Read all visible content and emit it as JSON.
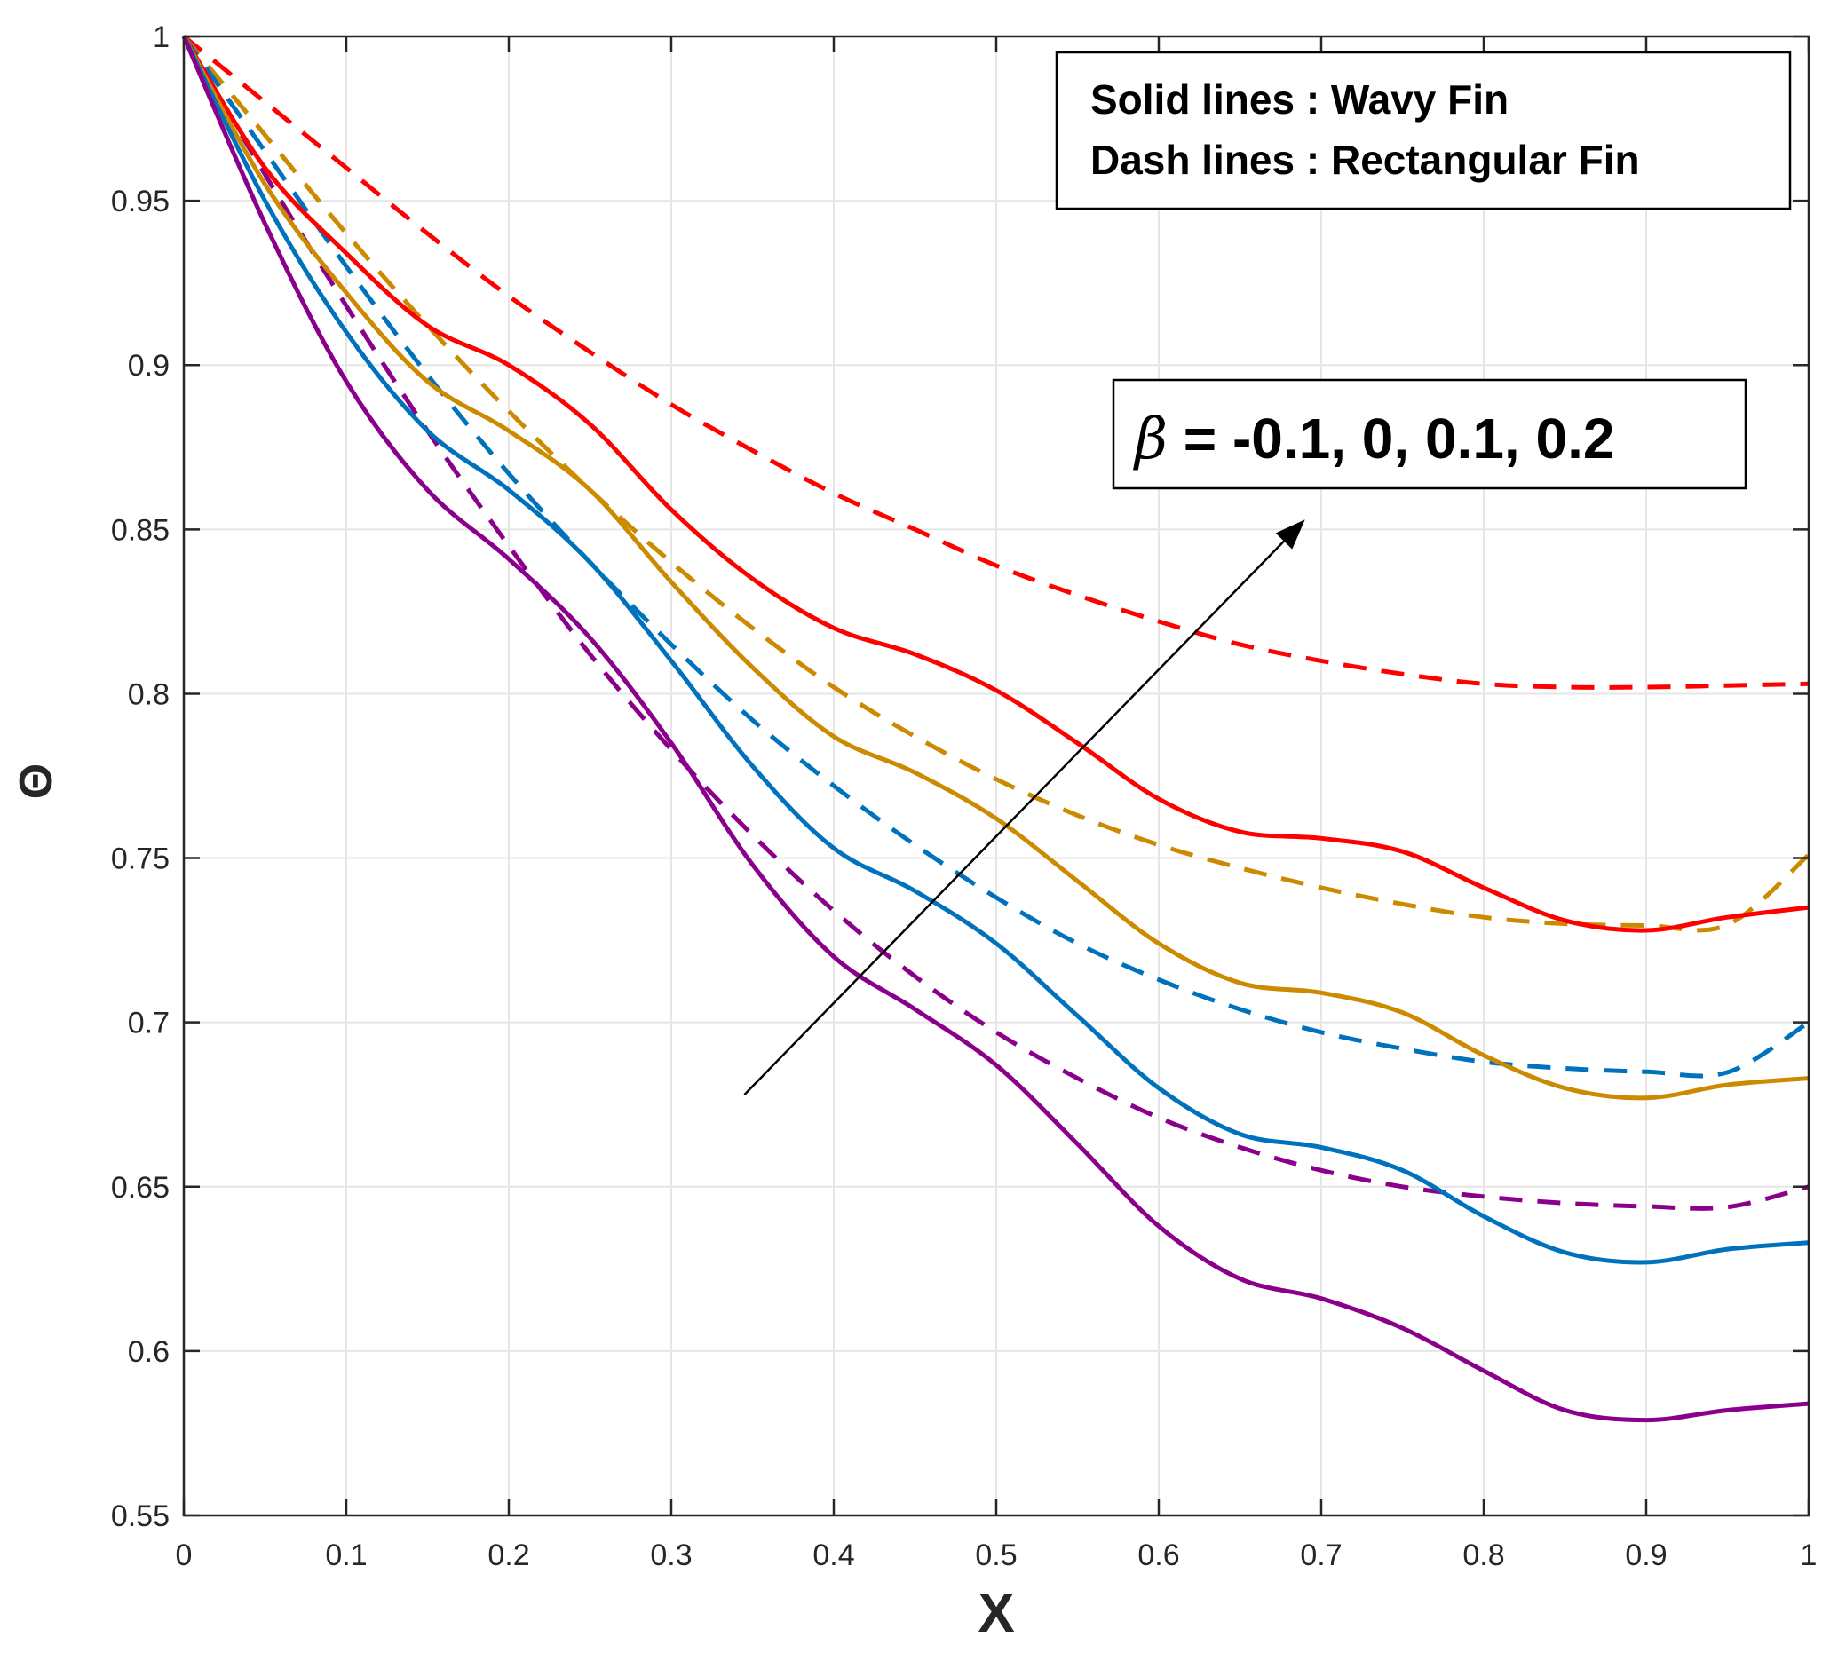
{
  "chart_data": {
    "type": "line",
    "title": "",
    "xlabel": "X",
    "ylabel": "Θ",
    "xlim": [
      0,
      1
    ],
    "ylim": [
      0.55,
      1
    ],
    "grid": true,
    "xticks": [
      0,
      0.1,
      0.2,
      0.3,
      0.4,
      0.5,
      0.6,
      0.7,
      0.8,
      0.9,
      1
    ],
    "xtick_labels": [
      "0",
      "0.1",
      "0.2",
      "0.3",
      "0.4",
      "0.5",
      "0.6",
      "0.7",
      "0.8",
      "0.9",
      "1"
    ],
    "yticks": [
      0.55,
      0.6,
      0.65,
      0.7,
      0.75,
      0.8,
      0.85,
      0.9,
      0.95,
      1
    ],
    "ytick_labels": [
      "0.55",
      "0.6",
      "0.65",
      "0.7",
      "0.75",
      "0.8",
      "0.85",
      "0.9",
      "0.95",
      "1"
    ],
    "legend": {
      "placement": "top-right",
      "lines": [
        "Solid lines : Wavy Fin",
        "Dash lines : Rectangular Fin"
      ]
    },
    "annotation": {
      "symbol": "β",
      "text": " = -0.1, 0, 0.1, 0.2",
      "arrow_from": [
        0.345,
        0.678
      ],
      "arrow_to": [
        0.69,
        0.853
      ]
    },
    "x": [
      0,
      0.05,
      0.1,
      0.15,
      0.2,
      0.25,
      0.3,
      0.35,
      0.4,
      0.45,
      0.5,
      0.55,
      0.6,
      0.65,
      0.7,
      0.75,
      0.8,
      0.85,
      0.9,
      0.95,
      1
    ],
    "series": [
      {
        "name": "Wavy Fin β=0.2",
        "style": "solid",
        "color": "#ff0000",
        "values": [
          1,
          0.96,
          0.934,
          0.912,
          0.9,
          0.882,
          0.856,
          0.835,
          0.82,
          0.812,
          0.801,
          0.785,
          0.768,
          0.758,
          0.756,
          0.752,
          0.741,
          0.731,
          0.728,
          0.732,
          0.735
        ]
      },
      {
        "name": "Wavy Fin β=0.1",
        "style": "solid",
        "color": "#cc8a00",
        "values": [
          1,
          0.955,
          0.922,
          0.895,
          0.88,
          0.862,
          0.834,
          0.808,
          0.787,
          0.776,
          0.762,
          0.743,
          0.724,
          0.712,
          0.709,
          0.703,
          0.69,
          0.68,
          0.677,
          0.681,
          0.683
        ]
      },
      {
        "name": "Wavy Fin β=0",
        "style": "solid",
        "color": "#0072bd",
        "values": [
          1,
          0.95,
          0.91,
          0.88,
          0.862,
          0.84,
          0.81,
          0.778,
          0.753,
          0.74,
          0.724,
          0.702,
          0.68,
          0.666,
          0.662,
          0.655,
          0.641,
          0.63,
          0.627,
          0.631,
          0.633
        ]
      },
      {
        "name": "Wavy Fin β=-0.1",
        "style": "solid",
        "color": "#8b008b",
        "values": [
          1,
          0.943,
          0.895,
          0.862,
          0.841,
          0.817,
          0.785,
          0.748,
          0.72,
          0.704,
          0.687,
          0.663,
          0.638,
          0.622,
          0.616,
          0.607,
          0.594,
          0.582,
          0.579,
          0.582,
          0.584
        ]
      },
      {
        "name": "Rectangular Fin β=0.2",
        "style": "dashed",
        "color": "#ff0000",
        "values": [
          1,
          0.98,
          0.96,
          0.94,
          0.921,
          0.904,
          0.888,
          0.874,
          0.861,
          0.85,
          0.839,
          0.83,
          0.822,
          0.815,
          0.81,
          0.806,
          0.803,
          0.802,
          0.802,
          0.8025,
          0.803
        ]
      },
      {
        "name": "Rectangular Fin β=0.1",
        "style": "dashed",
        "color": "#cc8a00",
        "values": [
          1,
          0.97,
          0.94,
          0.912,
          0.886,
          0.862,
          0.84,
          0.82,
          0.802,
          0.787,
          0.774,
          0.763,
          0.754,
          0.747,
          0.741,
          0.736,
          0.732,
          0.73,
          0.7295,
          0.7297,
          0.751
        ]
      },
      {
        "name": "Rectangular Fin β=0",
        "style": "dashed",
        "color": "#0072bd",
        "values": [
          1,
          0.965,
          0.93,
          0.897,
          0.867,
          0.84,
          0.815,
          0.792,
          0.772,
          0.754,
          0.738,
          0.724,
          0.713,
          0.704,
          0.697,
          0.692,
          0.688,
          0.686,
          0.685,
          0.6848,
          0.7
        ]
      },
      {
        "name": "Rectangular Fin β=-0.1",
        "style": "dashed",
        "color": "#8b008b",
        "values": [
          1,
          0.958,
          0.918,
          0.88,
          0.845,
          0.812,
          0.783,
          0.757,
          0.734,
          0.714,
          0.697,
          0.683,
          0.671,
          0.662,
          0.655,
          0.65,
          0.647,
          0.645,
          0.644,
          0.6438,
          0.65
        ]
      }
    ]
  }
}
